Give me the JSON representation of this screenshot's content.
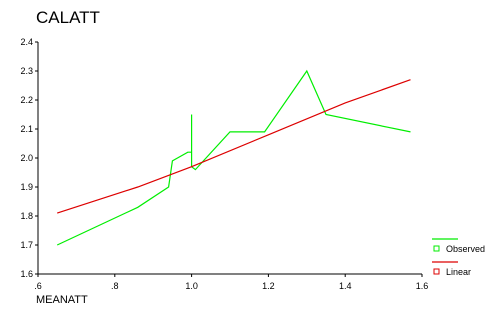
{
  "chart_data": {
    "type": "line",
    "title": "CALATT",
    "xlabel": "MEANATT",
    "ylabel": "",
    "xlim": [
      0.6,
      1.6
    ],
    "ylim": [
      1.6,
      2.4
    ],
    "xticks": [
      0.6,
      0.8,
      1.0,
      1.2,
      1.4,
      1.6
    ],
    "xtick_labels": [
      ".6",
      ".8",
      "1.0",
      "1.2",
      "1.4",
      "1.6"
    ],
    "yticks": [
      1.6,
      1.7,
      1.8,
      1.9,
      2.0,
      2.1,
      2.2,
      2.3,
      2.4
    ],
    "ytick_labels": [
      "1.6",
      "1.7",
      "1.8",
      "1.9",
      "2.0",
      "2.1",
      "2.2",
      "2.3",
      "2.4"
    ],
    "grid": false,
    "legend_position": "bottom-right",
    "series": [
      {
        "name": "Observed",
        "color": "#00ee00",
        "x": [
          0.65,
          0.86,
          0.94,
          0.95,
          0.99,
          1.0,
          1.0,
          1.0,
          1.01,
          1.1,
          1.19,
          1.3,
          1.35,
          1.57
        ],
        "y": [
          1.7,
          1.83,
          1.9,
          1.99,
          2.02,
          2.02,
          2.15,
          1.97,
          1.96,
          2.09,
          2.09,
          2.3,
          2.15,
          2.09
        ]
      },
      {
        "name": "Linear",
        "color": "#dd0000",
        "x": [
          0.65,
          0.86,
          1.0,
          1.2,
          1.4,
          1.57
        ],
        "y": [
          1.81,
          1.9,
          1.97,
          2.08,
          2.19,
          2.27
        ]
      }
    ]
  }
}
